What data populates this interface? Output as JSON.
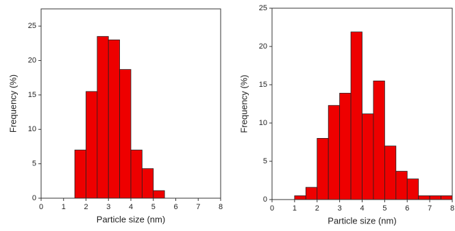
{
  "chart_data": [
    {
      "type": "histogram",
      "x_label": "Particle size (nm)",
      "y_label": "Frequency (%)",
      "bins": [
        1.5,
        2,
        2.5,
        3,
        3.5,
        4,
        4.5,
        5,
        5.5
      ],
      "values": [
        7,
        15.5,
        23.5,
        23,
        18.7,
        7,
        4.3,
        1.1
      ],
      "color": "#ee0000",
      "xlim": [
        0,
        8
      ],
      "xticks": [
        0,
        1,
        2,
        3,
        4,
        5,
        6,
        7,
        8
      ],
      "ylim": [
        0,
        27.5
      ],
      "yticks": [
        0,
        5,
        10,
        15,
        20,
        25
      ]
    },
    {
      "type": "histogram",
      "x_label": "Particle size (nm)",
      "y_label": "Frequency (%)",
      "bins": [
        1,
        1.5,
        2,
        2.5,
        3,
        3.5,
        4,
        4.5,
        5,
        5.5,
        6,
        6.5,
        7,
        7.5,
        8
      ],
      "values": [
        0.5,
        1.6,
        8,
        12.3,
        13.9,
        21.9,
        11.2,
        15.5,
        7,
        3.7,
        2.7,
        0.5,
        0.5,
        0.5
      ],
      "color": "#ee0000",
      "xlim": [
        0,
        8
      ],
      "xticks": [
        0,
        1,
        2,
        3,
        4,
        5,
        6,
        7,
        8
      ],
      "ylim": [
        0,
        25
      ],
      "yticks": [
        0,
        5,
        10,
        15,
        20,
        25
      ]
    }
  ]
}
